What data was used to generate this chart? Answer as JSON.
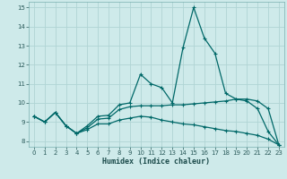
{
  "xlabel": "Humidex (Indice chaleur)",
  "xlim": [
    -0.5,
    23.5
  ],
  "ylim": [
    7.7,
    15.3
  ],
  "yticks": [
    8,
    9,
    10,
    11,
    12,
    13,
    14,
    15
  ],
  "xticks": [
    0,
    1,
    2,
    3,
    4,
    5,
    6,
    7,
    8,
    9,
    10,
    11,
    12,
    13,
    14,
    15,
    16,
    17,
    18,
    19,
    20,
    21,
    22,
    23
  ],
  "bg_color": "#ceeaea",
  "grid_color": "#b0d4d4",
  "line_color": "#006868",
  "series": {
    "line1": {
      "x": [
        0,
        1,
        2,
        3,
        4,
        5,
        6,
        7,
        8,
        9,
        10,
        11,
        12,
        13,
        14,
        15,
        16,
        17,
        18,
        19,
        20,
        21,
        22,
        23
      ],
      "y": [
        9.3,
        9.0,
        9.5,
        8.8,
        8.4,
        8.8,
        9.3,
        9.35,
        9.9,
        10.0,
        11.5,
        11.0,
        10.8,
        10.0,
        12.9,
        15.0,
        13.4,
        12.6,
        10.5,
        10.2,
        10.1,
        9.7,
        8.5,
        7.8
      ]
    },
    "line2": {
      "x": [
        0,
        1,
        2,
        3,
        4,
        5,
        6,
        7,
        8,
        9,
        10,
        11,
        12,
        13,
        14,
        15,
        16,
        17,
        18,
        19,
        20,
        21,
        22,
        23
      ],
      "y": [
        9.3,
        9.0,
        9.5,
        8.8,
        8.4,
        8.7,
        9.15,
        9.2,
        9.65,
        9.8,
        9.85,
        9.85,
        9.85,
        9.9,
        9.9,
        9.95,
        10.0,
        10.05,
        10.1,
        10.2,
        10.2,
        10.1,
        9.7,
        7.8
      ]
    },
    "line3": {
      "x": [
        0,
        1,
        2,
        3,
        4,
        5,
        6,
        7,
        8,
        9,
        10,
        11,
        12,
        13,
        14,
        15,
        16,
        17,
        18,
        19,
        20,
        21,
        22,
        23
      ],
      "y": [
        9.3,
        9.0,
        9.5,
        8.8,
        8.4,
        8.6,
        8.9,
        8.9,
        9.1,
        9.2,
        9.3,
        9.25,
        9.1,
        9.0,
        8.9,
        8.85,
        8.75,
        8.65,
        8.55,
        8.5,
        8.4,
        8.3,
        8.1,
        7.8
      ]
    }
  }
}
